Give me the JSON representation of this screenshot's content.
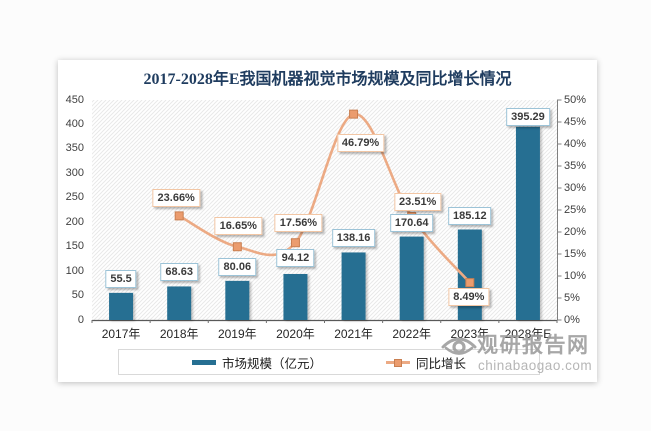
{
  "chart": {
    "title": "2017-2028年E我国机器视觉市场规模及同比增长情况"
  },
  "chart_data": {
    "type": "bar+line",
    "title": "2017-2028年E我国机器视觉市场规模及同比增长情况",
    "categories": [
      "2017年",
      "2018年",
      "2019年",
      "2020年",
      "2021年",
      "2022年",
      "2023年",
      "2028年E"
    ],
    "series": [
      {
        "name": "市场规模（亿元）",
        "type": "bar",
        "axis": "left",
        "color": "#266f92",
        "values": [
          55.5,
          68.63,
          80.06,
          94.12,
          138.16,
          170.64,
          185.12,
          395.29
        ],
        "labels": [
          "55.5",
          "68.63",
          "80.06",
          "94.12",
          "138.16",
          "170.64",
          "185.12",
          "395.29"
        ]
      },
      {
        "name": "同比增长",
        "type": "line",
        "axis": "right",
        "color": "#ecaa84",
        "values": [
          null,
          23.66,
          16.65,
          17.56,
          46.79,
          23.51,
          8.49,
          null
        ],
        "labels": [
          null,
          "23.66%",
          "16.65%",
          "17.56%",
          "46.79%",
          "23.51%",
          "8.49%",
          null
        ]
      }
    ],
    "left_axis": {
      "min": 0,
      "max": 450,
      "step": 50,
      "ticks": [
        "0",
        "50",
        "100",
        "150",
        "200",
        "250",
        "300",
        "350",
        "400",
        "450"
      ]
    },
    "right_axis": {
      "min": 0,
      "max": 50,
      "step": 5,
      "ticks": [
        "0%",
        "5%",
        "10%",
        "15%",
        "20%",
        "25%",
        "30%",
        "35%",
        "40%",
        "45%",
        "50%"
      ]
    },
    "legend_position": "bottom",
    "grid": false,
    "plot_background": "diagonal-hatch"
  },
  "legend": {
    "items": [
      {
        "label": "市场规模（亿元）",
        "swatch": "bar"
      },
      {
        "label": "同比增长",
        "swatch": "line-marker"
      }
    ]
  },
  "watermark": {
    "brand": "观研报告网",
    "domain": "chinabaogao.com"
  },
  "colors": {
    "bar": "#266f92",
    "line": "#ecaa84",
    "marker_fill": "#eb9c6e",
    "marker_border": "#c97f51",
    "title": "#1f3c5f",
    "bar_label_border": "#9cc3d7",
    "line_label_border": "#f2c6a4",
    "axis": "#595959",
    "hatch": "#e9e9e9"
  }
}
